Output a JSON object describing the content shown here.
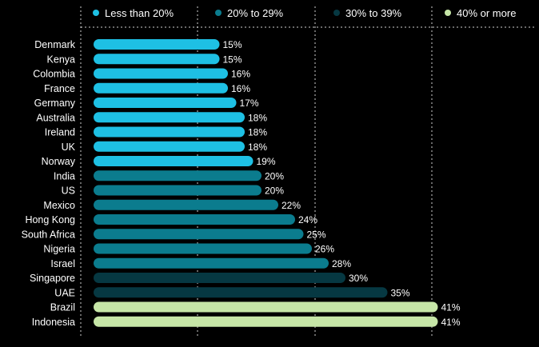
{
  "chart_data": {
    "type": "bar",
    "orientation": "horizontal",
    "unit": "%",
    "xlim": [
      0,
      41
    ],
    "grid": true,
    "legend_position": "top",
    "legend": [
      {
        "label": "Less than 20%",
        "color": "#1ec0e4"
      },
      {
        "label": "20% to 29%",
        "color": "#0b7c8e"
      },
      {
        "label": "30% to 39%",
        "color": "#063842"
      },
      {
        "label": "40% or more",
        "color": "#c6e6a7"
      }
    ],
    "categories": [
      "Denmark",
      "Kenya",
      "Colombia",
      "France",
      "Germany",
      "Australia",
      "Ireland",
      "UK",
      "Norway",
      "India",
      "US",
      "Mexico",
      "Hong Kong",
      "South Africa",
      "Nigeria",
      "Israel",
      "Singapore",
      "UAE",
      "Brazil",
      "Indonesia"
    ],
    "values": [
      15,
      15,
      16,
      16,
      17,
      18,
      18,
      18,
      19,
      20,
      20,
      22,
      24,
      25,
      26,
      28,
      30,
      35,
      41,
      41
    ],
    "value_labels": [
      "15%",
      "15%",
      "16%",
      "16%",
      "17%",
      "18%",
      "18%",
      "18%",
      "19%",
      "20%",
      "20%",
      "22%",
      "24%",
      "25%",
      "26%",
      "28%",
      "30%",
      "35%",
      "41%",
      "41%"
    ],
    "bar_groups": [
      0,
      0,
      0,
      0,
      0,
      0,
      0,
      0,
      0,
      1,
      1,
      1,
      1,
      1,
      1,
      1,
      2,
      2,
      3,
      3
    ]
  }
}
